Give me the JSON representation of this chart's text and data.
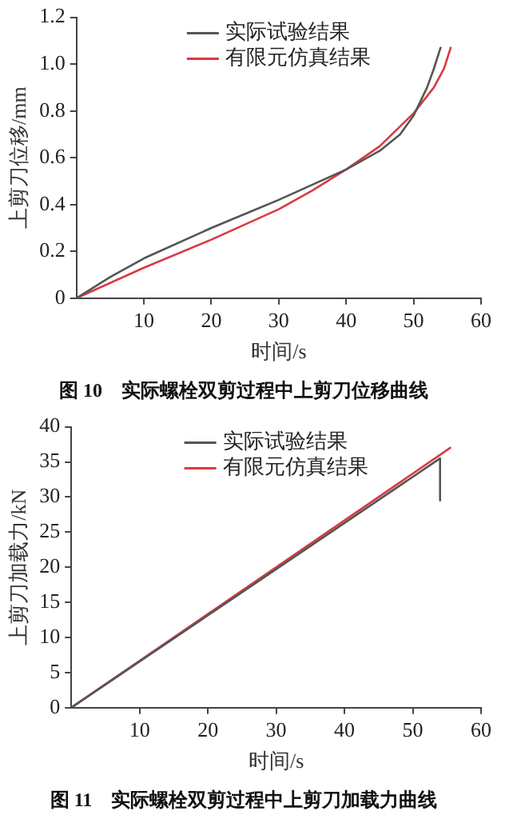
{
  "chart_data": [
    {
      "type": "line",
      "title": "图 10　实际螺栓双剪过程中上剪刀位移曲线",
      "xlabel": "时间/s",
      "ylabel": "上剪刀位移/mm",
      "xlim": [
        0,
        60
      ],
      "xticks": [
        10,
        20,
        30,
        40,
        50,
        60
      ],
      "ylim": [
        0,
        1.2
      ],
      "yticks": [
        0,
        0.2,
        0.4,
        0.6,
        0.8,
        {
          "value": 1,
          "label": "1.0"
        },
        1.2
      ],
      "grid": false,
      "legend": "top",
      "marker": "none",
      "line_style": "solid",
      "series": [
        {
          "name": "实际试验结果",
          "color": "#555555",
          "x": [
            0,
            5,
            10,
            20,
            30,
            40,
            45,
            48,
            50,
            52,
            53,
            54
          ],
          "values": [
            0,
            0.09,
            0.17,
            0.3,
            0.42,
            0.55,
            0.63,
            0.7,
            0.78,
            0.9,
            0.98,
            1.07
          ]
        },
        {
          "name": "有限元仿真结果",
          "color": "#d93a44",
          "x": [
            0,
            10,
            20,
            30,
            35,
            40,
            45,
            50,
            53,
            54.5,
            55.5
          ],
          "values": [
            0,
            0.13,
            0.25,
            0.38,
            0.46,
            0.55,
            0.65,
            0.79,
            0.9,
            0.98,
            1.07
          ]
        }
      ]
    },
    {
      "type": "line",
      "title": "图 11　实际螺栓双剪过程中上剪刀加载力曲线",
      "xlabel": "时间/s",
      "ylabel": "上剪刀加载力/kN",
      "xlim": [
        0,
        60
      ],
      "xticks": [
        10,
        20,
        30,
        40,
        50,
        60
      ],
      "ylim": [
        0,
        40
      ],
      "yticks": [
        0,
        5,
        10,
        15,
        20,
        25,
        30,
        35,
        40
      ],
      "grid": false,
      "legend": "top",
      "marker": "none",
      "line_style": "solid",
      "series": [
        {
          "name": "实际试验结果",
          "color": "#555555",
          "x": [
            0,
            54,
            54
          ],
          "values": [
            0,
            35.5,
            29.5
          ]
        },
        {
          "name": "有限元仿真结果",
          "color": "#d93a44",
          "x": [
            0,
            55.5
          ],
          "values": [
            0,
            37
          ]
        }
      ]
    }
  ]
}
